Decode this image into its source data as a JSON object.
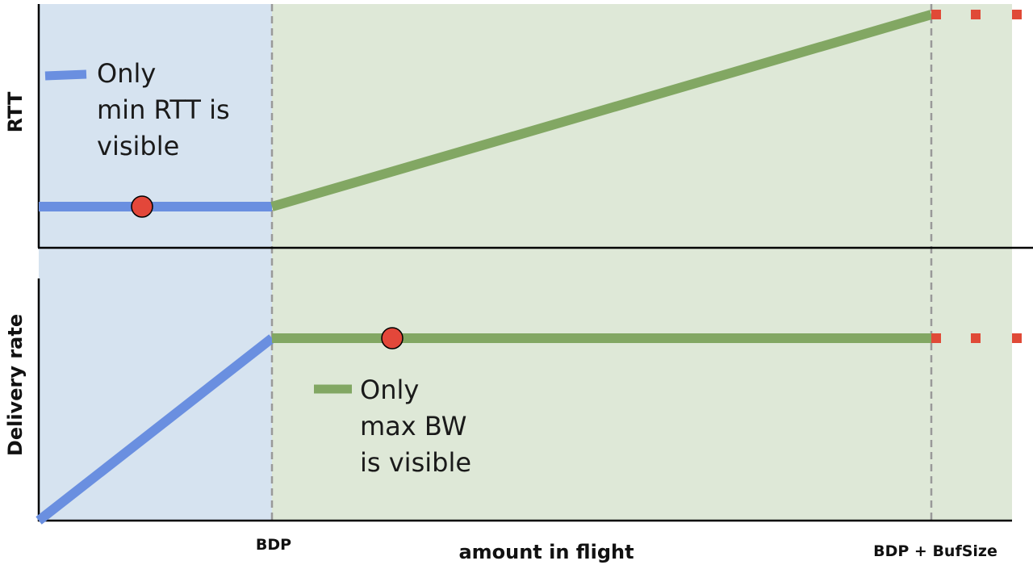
{
  "colors": {
    "app_limited_region": "#d6e3f0",
    "bandwidth_limited_region": "#dee8d7",
    "app_limited_line": "#6a8fe0",
    "bandwidth_limited_line": "#82a763",
    "loss_marker": "#e04a37",
    "operating_point": "#e3473a",
    "axis": "#000000",
    "divider": "#999999"
  },
  "x_axis": {
    "title": "amount in flight",
    "ticks": [
      "BDP",
      "BDP + BufSize"
    ]
  },
  "top_panel": {
    "y_title": "RTT",
    "legend": {
      "lines": [
        "Only",
        "min RTT is",
        "visible"
      ]
    },
    "markers": [
      "operating-point",
      "loss-dots"
    ]
  },
  "bottom_panel": {
    "y_title": "Delivery rate",
    "legend": {
      "lines": [
        "Only",
        "max BW",
        "is visible"
      ]
    },
    "markers": [
      "operating-point",
      "loss-dots"
    ]
  }
}
